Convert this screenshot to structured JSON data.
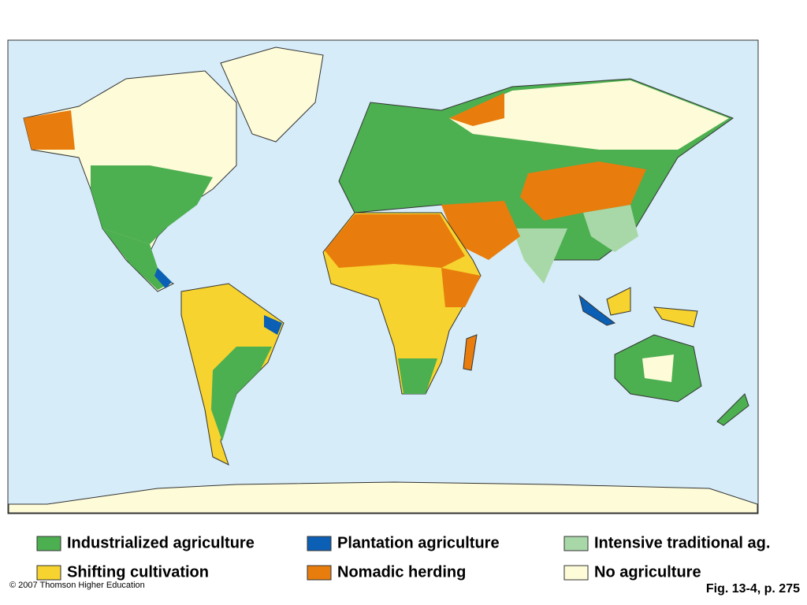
{
  "legend": [
    {
      "label": "Industrialized agriculture",
      "color": "#4caf50"
    },
    {
      "label": "Plantation agriculture",
      "color": "#0b5fb4"
    },
    {
      "label": "Intensive traditional ag.",
      "color": "#a8d8a8"
    },
    {
      "label": "Shifting cultivation",
      "color": "#f6d32e"
    },
    {
      "label": "Nomadic herding",
      "color": "#e87d0d"
    },
    {
      "label": "No agriculture",
      "color": "#fdfbd8"
    }
  ],
  "copyright": "© 2007 Thomson Higher Education",
  "caption": "Fig. 13-4, p. 275"
}
